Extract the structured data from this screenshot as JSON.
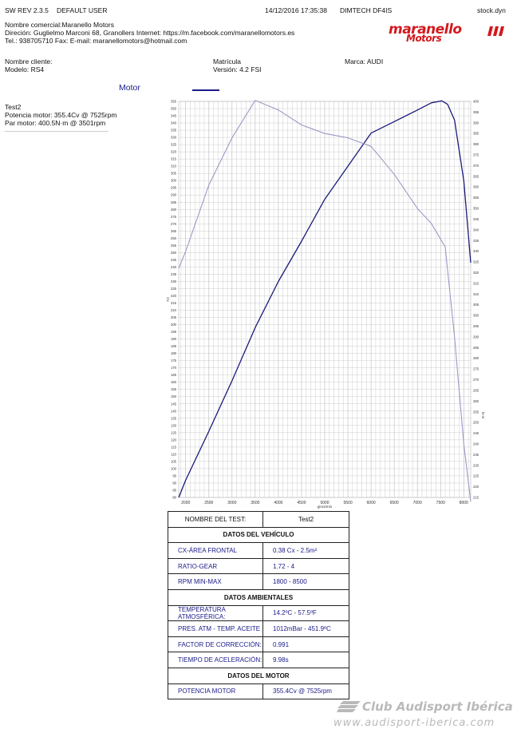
{
  "header": {
    "sw_rev": "SW REV 2.3.5",
    "user": "DEFAULT USER",
    "datetime": "14/12/2016 17:35:38",
    "device": "DIMTECH DF4IS",
    "file": "stock.dyn"
  },
  "company": {
    "line1": "Nombre comercial:Maranello Motors",
    "line2": "Direción: Guglielmo Marconi 68, Granollers Internet: https://m.facebook.com/maranellomotors.es",
    "line3": "Tel.: 938705710 Fax:  E-mail: maranellomotors@hotmail.com",
    "logo_top": "maranello",
    "logo_bottom": "Motors"
  },
  "client": {
    "name_label": "Nombre cliente:",
    "model_label": "Modelo: RS4",
    "plate_label": "Matrícula",
    "version_label": "Versión: 4.2 FSI",
    "brand_label": "Marca: AUDI"
  },
  "legend": {
    "title": "Motor"
  },
  "test": {
    "name": "Test2",
    "power": "Potencia motor: 355.4Cv @ 7525rpm",
    "torque": "Par motor: 400.5N·m @ 3501rpm"
  },
  "colors": {
    "power": "#1a1a7a",
    "torque": "#9a9ac8",
    "grid": "#b8b8b8",
    "logo": "#d2191e"
  },
  "chart_data": {
    "type": "line",
    "xlabel": "giros/min",
    "ylabel_left": "Cv",
    "ylabel_right": "N·m",
    "xlim": [
      1850,
      8150
    ],
    "ylim_left": [
      80,
      355
    ],
    "ylim_right": [
      215,
      400
    ],
    "xticks": [
      2000,
      2500,
      3000,
      3500,
      4000,
      4500,
      5000,
      5500,
      6000,
      6500,
      7000,
      7500,
      8000
    ],
    "grid": true,
    "series": [
      {
        "axis": "left",
        "x": [
          1850,
          2000,
          2500,
          3000,
          3500,
          4000,
          4500,
          5000,
          5500,
          6000,
          6500,
          7000,
          7300,
          7525,
          7650,
          7800,
          8000,
          8150
        ],
        "values": [
          80,
          92,
          126,
          161,
          198,
          230,
          258,
          287,
          310,
          333,
          341,
          349,
          354,
          355.4,
          353,
          342,
          300,
          243
        ]
      },
      {
        "axis": "right",
        "x": [
          1850,
          2000,
          2500,
          3000,
          3501,
          4000,
          4500,
          5000,
          5500,
          6000,
          6500,
          7000,
          7300,
          7600,
          7800,
          8000,
          8150
        ],
        "values": [
          322,
          330,
          361,
          383,
          400.5,
          396,
          389,
          385,
          383,
          379,
          366,
          350,
          343,
          332,
          290,
          240,
          213
        ]
      }
    ]
  },
  "table": {
    "header_label": "NOMBRE DEL TEST:",
    "header_value": "Test2",
    "sections": [
      {
        "title": "DATOS DEL VEHÍCULO",
        "rows": [
          {
            "label": "CX-ÁREA FRONTAL",
            "value": "0.38 Cx - 2.5m²"
          },
          {
            "label": "RATIO-GEAR",
            "value": "1.72 - 4"
          },
          {
            "label": "RPM MIN-MAX",
            "value": "1800 - 8500"
          }
        ]
      },
      {
        "title": "DATOS AMBIENTALES",
        "rows": [
          {
            "label": "TEMPERATURA ATMOSFÉRICA:",
            "value": "14.2ºC - 57.5ºF"
          },
          {
            "label": "PRES. ATM - TEMP. ACEITE",
            "value": "1012mBar - 451.9ºC"
          },
          {
            "label": "FACTOR DE CORRECCIÓN:",
            "value": "0.991"
          },
          {
            "label": "TIEMPO DE ACELERACIÓN:",
            "value": "9.98s"
          }
        ]
      },
      {
        "title": "DATOS DEL MOTOR",
        "rows": [
          {
            "label": "POTENCIA MOTOR",
            "value": "355.4Cv @ 7525rpm"
          }
        ]
      }
    ]
  },
  "watermark": {
    "line1": "Club Audisport Ibérica",
    "line2": "www.audisport-iberica.com"
  }
}
